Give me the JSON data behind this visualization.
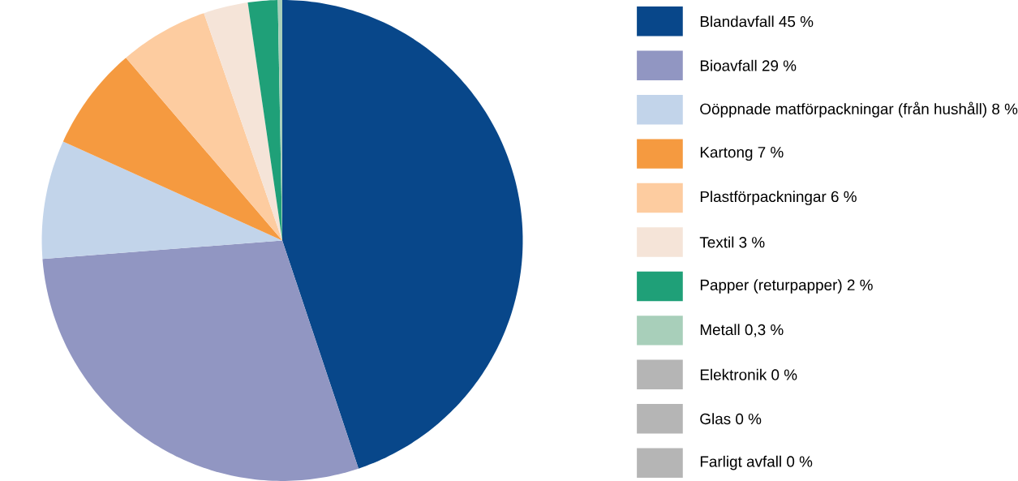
{
  "chart_data": {
    "type": "pie",
    "categories": [
      "Blandavfall 45 %",
      "Bioavfall 29 %",
      "Oöppnade matförpackningar (från hushåll) 8 %",
      "Kartong 7 %",
      "Plastförpackningar 6 %",
      "Textil 3 %",
      "Papper (returpapper) 2 %",
      "Metall 0,3 %",
      "Elektronik 0 %",
      "Glas 0 %",
      "Farligt avfall 0 %"
    ],
    "values": [
      45,
      29,
      8,
      7,
      6,
      3,
      2,
      0.3,
      0,
      0,
      0
    ],
    "colors": [
      "#08478a",
      "#9196c2",
      "#c2d4ea",
      "#f59a40",
      "#fdcca0",
      "#f5e4d8",
      "#1fa078",
      "#a8cfba",
      "#b5b5b5",
      "#b5b5b5",
      "#b5b5b5"
    ],
    "legend": "right"
  }
}
